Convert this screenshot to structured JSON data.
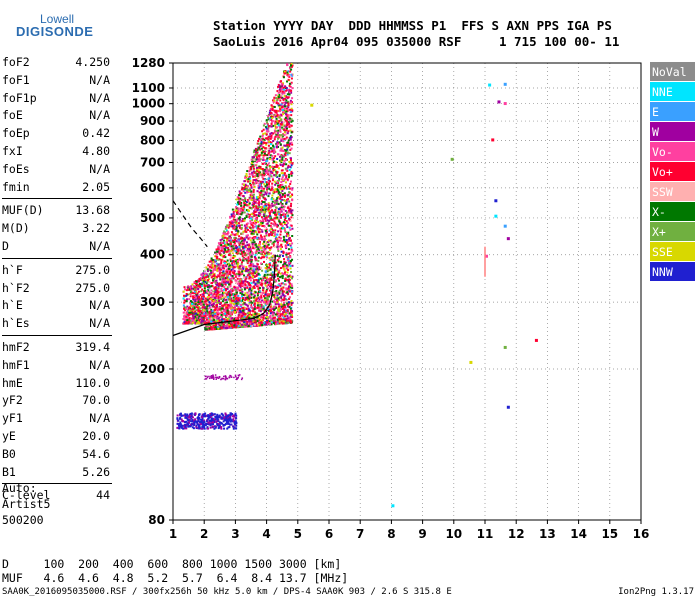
{
  "logo": {
    "line1": "Lowell",
    "line2": "DIGISONDE"
  },
  "header": {
    "line1": "Station YYYY DAY  DDD HHMMSS P1  FFS S AXN PPS IGA PS",
    "line2": "SaoLuis 2016 Apr04 095 035000 RSF     1 715 100 00- 11"
  },
  "params": [
    {
      "k": "foF2",
      "v": "4.250"
    },
    {
      "k": "foF1",
      "v": "N/A"
    },
    {
      "k": "foF1p",
      "v": "N/A"
    },
    {
      "k": "foE",
      "v": "N/A"
    },
    {
      "k": "foEp",
      "v": "0.42"
    },
    {
      "k": "fxI",
      "v": "4.80"
    },
    {
      "k": "foEs",
      "v": "N/A"
    },
    {
      "k": "fmin",
      "v": "2.05"
    },
    {
      "k": "MUF(D)",
      "v": "13.68"
    },
    {
      "k": "M(D)",
      "v": "3.22"
    },
    {
      "k": "D",
      "v": "N/A"
    },
    {
      "k": "h`F",
      "v": "275.0"
    },
    {
      "k": "h`F2",
      "v": "275.0"
    },
    {
      "k": "h`E",
      "v": "N/A"
    },
    {
      "k": "h`Es",
      "v": "N/A"
    },
    {
      "k": "hmF2",
      "v": "319.4"
    },
    {
      "k": "hmF1",
      "v": "N/A"
    },
    {
      "k": "hmE",
      "v": "110.0"
    },
    {
      "k": "yF2",
      "v": "70.0"
    },
    {
      "k": "yF1",
      "v": "N/A"
    },
    {
      "k": "yE",
      "v": "20.0"
    },
    {
      "k": "B0",
      "v": "54.6"
    },
    {
      "k": "B1",
      "v": "5.26"
    },
    {
      "k": "C-level",
      "v": "44"
    }
  ],
  "auto": {
    "line1": "Auto:",
    "line2": "Artist5",
    "line3": "500200"
  },
  "legend": [
    {
      "label": "NoVal",
      "color": "#8c8c8c"
    },
    {
      "label": "NNE",
      "color": "#00e5ff"
    },
    {
      "label": "E",
      "color": "#3aa0ff"
    },
    {
      "label": "W",
      "color": "#a000a0"
    },
    {
      "label": "Vo-",
      "color": "#ff40a0"
    },
    {
      "label": "Vo+",
      "color": "#ff0030"
    },
    {
      "label": "SSW",
      "color": "#ffb0b0"
    },
    {
      "label": "X-",
      "color": "#007800"
    },
    {
      "label": "X+",
      "color": "#70b040"
    },
    {
      "label": "SSE",
      "color": "#d8d800"
    },
    {
      "label": "NNW",
      "color": "#2020d0"
    }
  ],
  "muf_table": {
    "line1": "D     100  200  400  600  800 1000 1500 3000 [km]",
    "line2": "MUF   4.6  4.6  4.8  5.2  5.7  6.4  8.4 13.7 [MHz]"
  },
  "footer": {
    "text": "SAA0K_2016095035000.RSF / 300fx256h 50 kHz 5.0 km / DPS-4 SAA0K 903 / 2.6 S 315.8 E",
    "version": "Ion2Png 1.3.17"
  },
  "chart_data": {
    "type": "scatter",
    "title": "",
    "xlabel": "",
    "ylabel": "",
    "xlim": [
      1,
      16
    ],
    "ylim": [
      80,
      1280
    ],
    "y_scale": "log",
    "grid": true,
    "x_ticks": [
      1,
      2,
      3,
      4,
      5,
      6,
      7,
      8,
      9,
      10,
      11,
      12,
      13,
      14,
      15,
      16
    ],
    "y_ticks": [
      80,
      200,
      300,
      400,
      500,
      600,
      700,
      800,
      900,
      1000,
      1100,
      1280
    ],
    "legend_position": "right",
    "series": [
      {
        "name": "profile_curve",
        "points": [
          [
            1.0,
            245
          ],
          [
            2.0,
            262
          ],
          [
            3.0,
            268
          ],
          [
            3.6,
            272
          ],
          [
            3.9,
            280
          ],
          [
            4.1,
            295
          ],
          [
            4.2,
            320
          ],
          [
            4.25,
            355
          ],
          [
            4.28,
            400
          ]
        ]
      },
      {
        "name": "dashed_trace",
        "points": [
          [
            1.0,
            555
          ],
          [
            1.3,
            510
          ],
          [
            1.6,
            470
          ],
          [
            1.9,
            440
          ],
          [
            2.1,
            420
          ]
        ]
      },
      {
        "name": "isolated_points",
        "points": [
          [
            11.1,
            1130
          ],
          [
            11.6,
            1135
          ],
          [
            11.4,
            1020
          ],
          [
            11.6,
            1010
          ],
          [
            11.2,
            810
          ],
          [
            9.9,
            720
          ],
          [
            5.4,
            1000
          ],
          [
            11.3,
            560
          ],
          [
            11.3,
            510
          ],
          [
            11.6,
            480
          ],
          [
            11.7,
            445
          ],
          [
            11.0,
            400
          ],
          [
            12.6,
            240
          ],
          [
            11.6,
            230
          ],
          [
            10.5,
            210
          ],
          [
            11.7,
            160
          ],
          [
            8.0,
            88
          ]
        ]
      }
    ]
  }
}
